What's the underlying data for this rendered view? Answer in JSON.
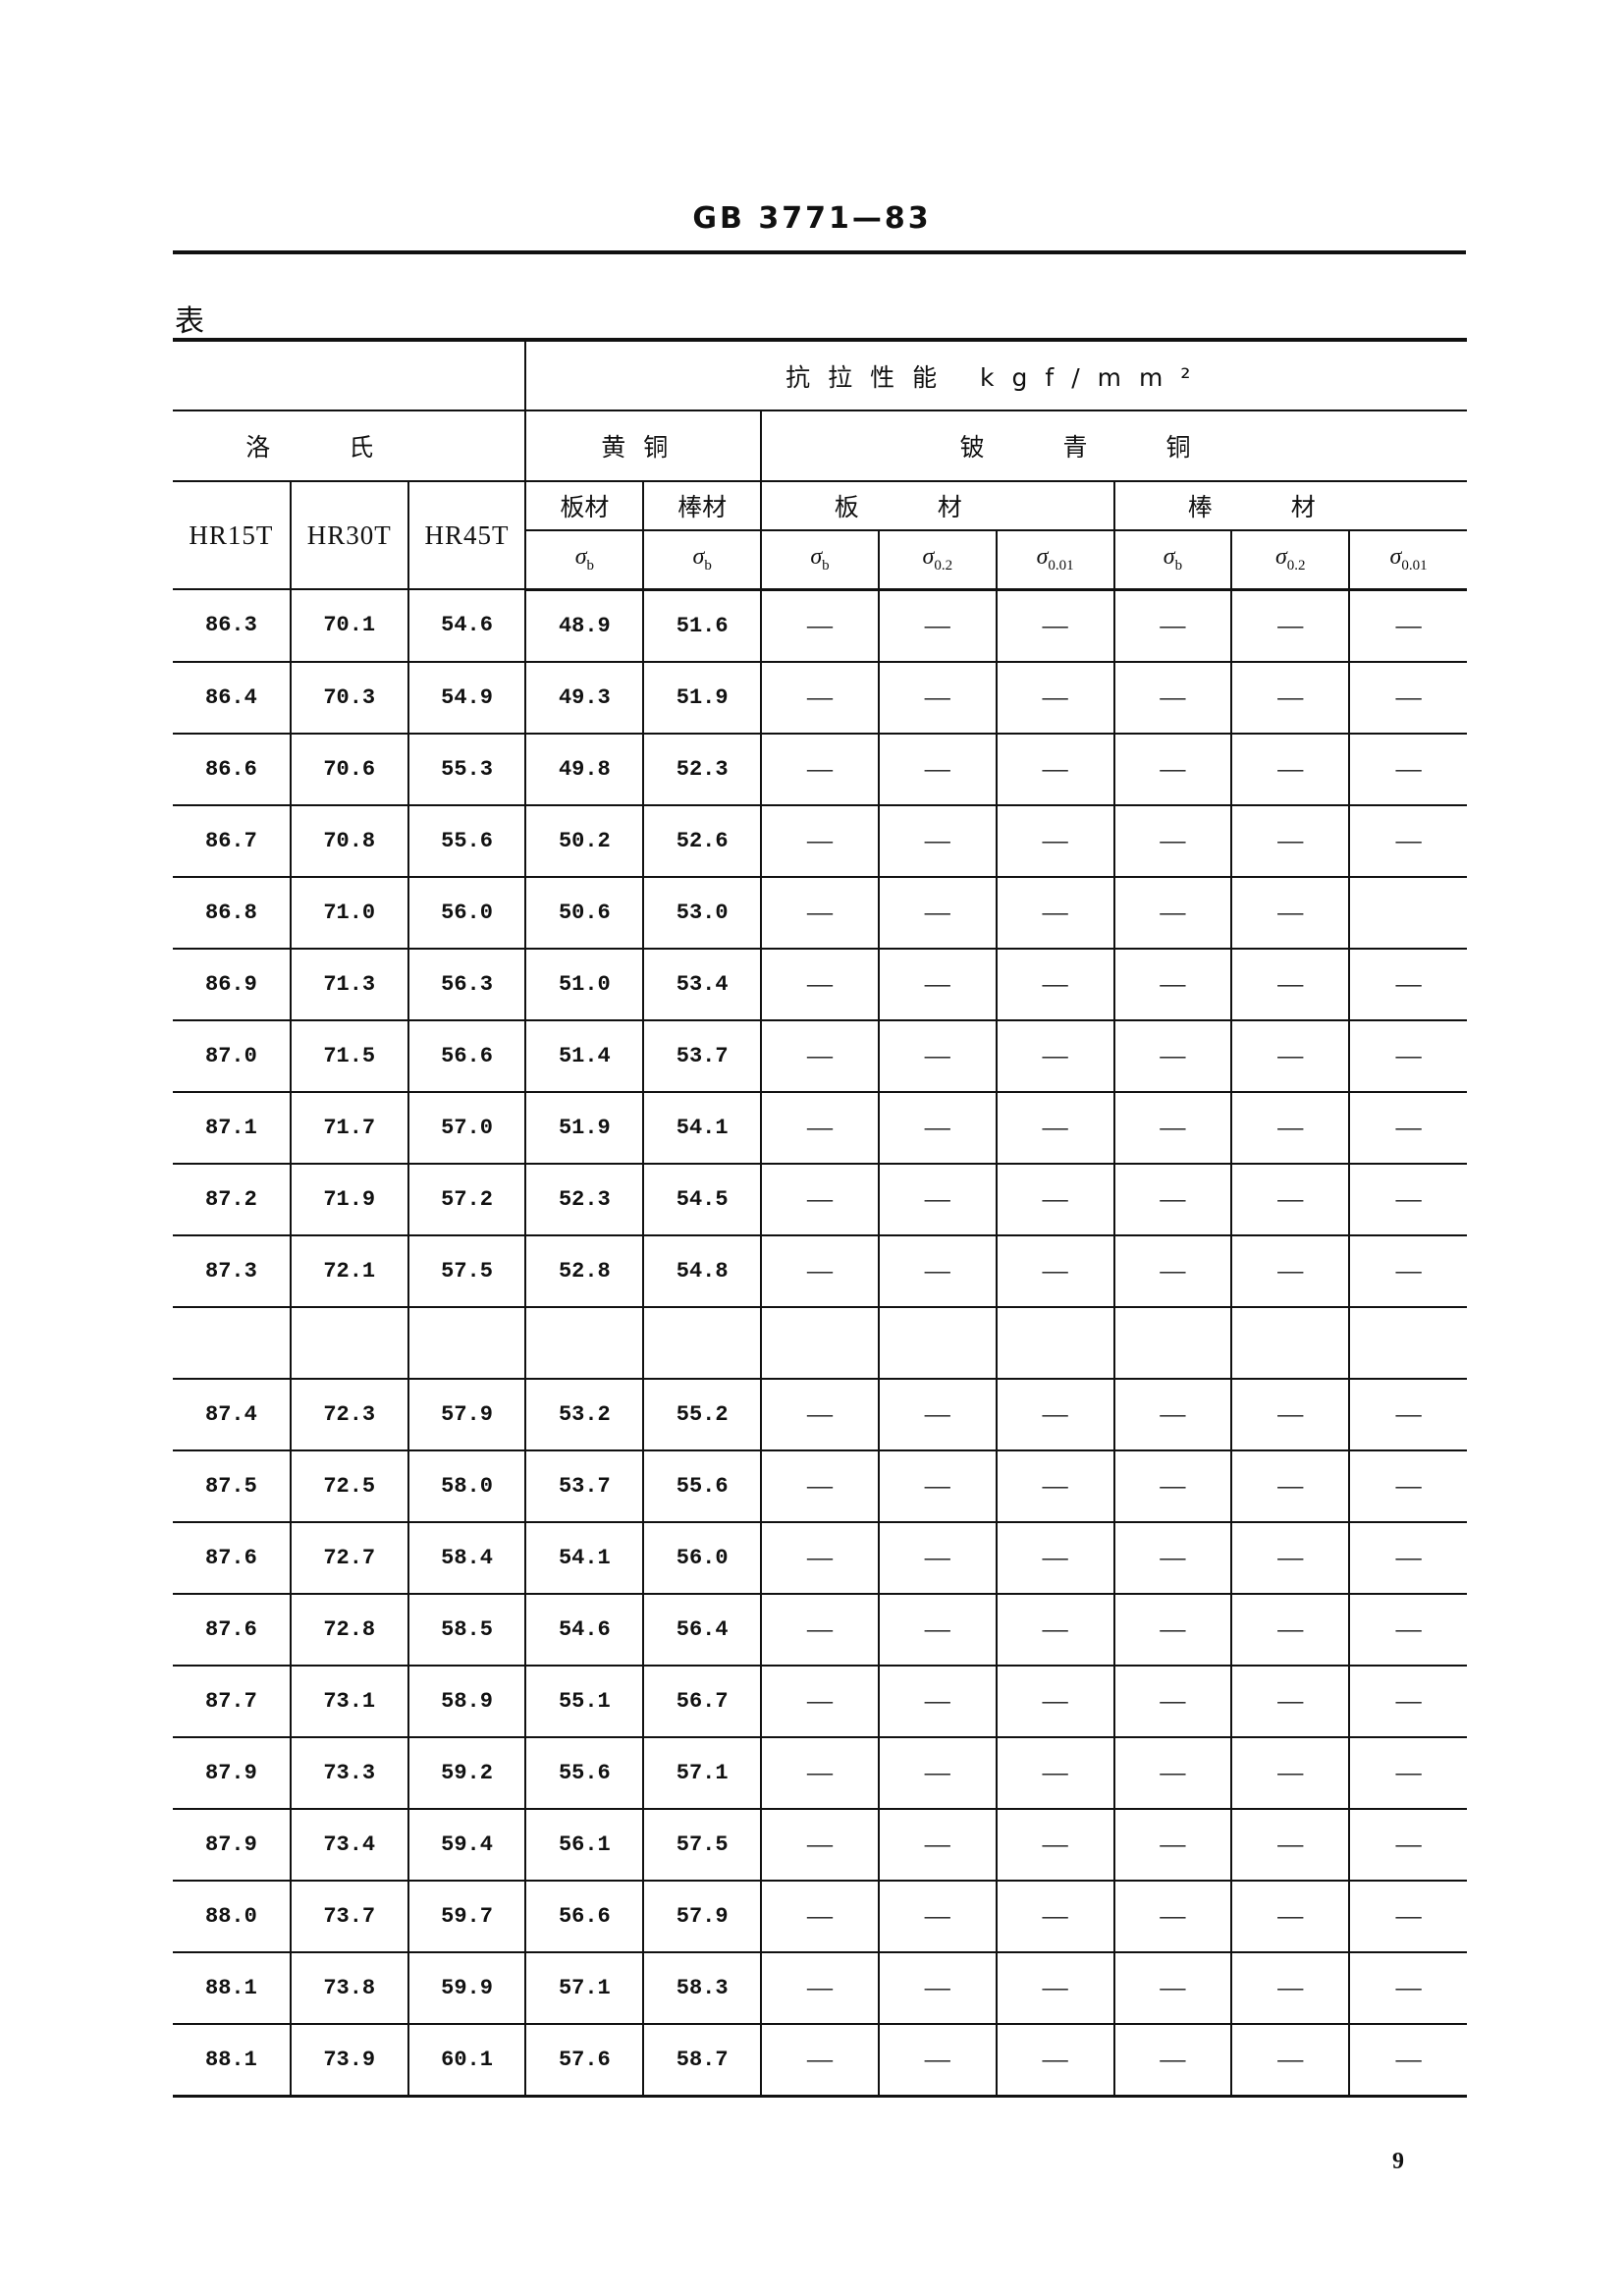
{
  "header": {
    "title": "GB 3771—83",
    "table_label": "表"
  },
  "table": {
    "group_tensile": "抗拉性能 kgf/mm²",
    "group_rockwell": "洛氏",
    "group_brass": "黄铜",
    "group_beryllium": "铍青铜",
    "rockwell_cols": [
      "HR15T",
      "HR30T",
      "HR45T"
    ],
    "brass_cols": [
      "板材",
      "棒材"
    ],
    "beryllium_sub": [
      "板材",
      "棒材"
    ],
    "sigma_cols": [
      {
        "sym": "σ",
        "sub": "b"
      },
      {
        "sym": "σ",
        "sub": "b"
      },
      {
        "sym": "σ",
        "sub": "b"
      },
      {
        "sym": "σ",
        "sub": "0.2"
      },
      {
        "sym": "σ",
        "sub": "0.01"
      },
      {
        "sym": "σ",
        "sub": "b"
      },
      {
        "sym": "σ",
        "sub": "0.2"
      },
      {
        "sym": "σ",
        "sub": "0.01"
      }
    ],
    "rows": [
      [
        "86.3",
        "70.1",
        "54.6",
        "48.9",
        "51.6",
        "—",
        "—",
        "—",
        "—",
        "—",
        "—"
      ],
      [
        "86.4",
        "70.3",
        "54.9",
        "49.3",
        "51.9",
        "—",
        "—",
        "—",
        "—",
        "—",
        "—"
      ],
      [
        "86.6",
        "70.6",
        "55.3",
        "49.8",
        "52.3",
        "—",
        "—",
        "—",
        "—",
        "—",
        "—"
      ],
      [
        "86.7",
        "70.8",
        "55.6",
        "50.2",
        "52.6",
        "—",
        "—",
        "—",
        "—",
        "—",
        "—"
      ],
      [
        "86.8",
        "71.0",
        "56.0",
        "50.6",
        "53.0",
        "—",
        "—",
        "—",
        "—",
        "—",
        ""
      ],
      [
        "86.9",
        "71.3",
        "56.3",
        "51.0",
        "53.4",
        "—",
        "—",
        "—",
        "—",
        "—",
        "—"
      ],
      [
        "87.0",
        "71.5",
        "56.6",
        "51.4",
        "53.7",
        "—",
        "—",
        "—",
        "—",
        "—",
        "—"
      ],
      [
        "87.1",
        "71.7",
        "57.0",
        "51.9",
        "54.1",
        "—",
        "—",
        "—",
        "—",
        "—",
        "—"
      ],
      [
        "87.2",
        "71.9",
        "57.2",
        "52.3",
        "54.5",
        "—",
        "—",
        "—",
        "—",
        "—",
        "—"
      ],
      [
        "87.3",
        "72.1",
        "57.5",
        "52.8",
        "54.8",
        "—",
        "—",
        "—",
        "—",
        "—",
        "—"
      ],
      [
        "",
        "",
        "",
        "",
        "",
        "",
        "",
        "",
        "",
        "",
        ""
      ],
      [
        "87.4",
        "72.3",
        "57.9",
        "53.2",
        "55.2",
        "—",
        "—",
        "—",
        "—",
        "—",
        "—"
      ],
      [
        "87.5",
        "72.5",
        "58.0",
        "53.7",
        "55.6",
        "—",
        "—",
        "—",
        "—",
        "—",
        "—"
      ],
      [
        "87.6",
        "72.7",
        "58.4",
        "54.1",
        "56.0",
        "—",
        "—",
        "—",
        "—",
        "—",
        "—"
      ],
      [
        "87.6",
        "72.8",
        "58.5",
        "54.6",
        "56.4",
        "—",
        "—",
        "—",
        "—",
        "—",
        "—"
      ],
      [
        "87.7",
        "73.1",
        "58.9",
        "55.1",
        "56.7",
        "—",
        "—",
        "—",
        "—",
        "—",
        "—"
      ],
      [
        "87.9",
        "73.3",
        "59.2",
        "55.6",
        "57.1",
        "—",
        "—",
        "—",
        "—",
        "—",
        "—"
      ],
      [
        "87.9",
        "73.4",
        "59.4",
        "56.1",
        "57.5",
        "—",
        "—",
        "—",
        "—",
        "—",
        "—"
      ],
      [
        "88.0",
        "73.7",
        "59.7",
        "56.6",
        "57.9",
        "—",
        "—",
        "—",
        "—",
        "—",
        "—"
      ],
      [
        "88.1",
        "73.8",
        "59.9",
        "57.1",
        "58.3",
        "—",
        "—",
        "—",
        "—",
        "—",
        "—"
      ],
      [
        "88.1",
        "73.9",
        "60.1",
        "57.6",
        "58.7",
        "—",
        "—",
        "—",
        "—",
        "—",
        "—"
      ]
    ]
  },
  "footer": {
    "page_number": "9"
  }
}
